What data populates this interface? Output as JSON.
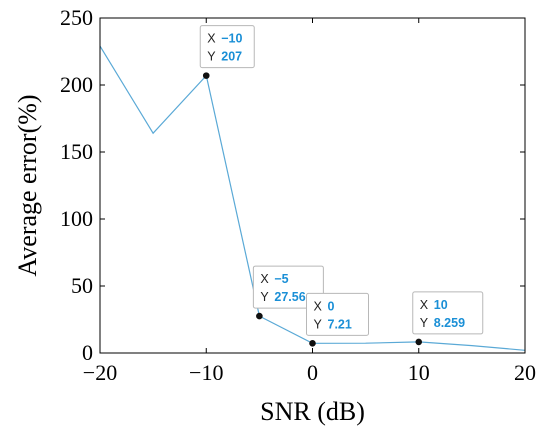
{
  "chart_data": {
    "type": "line",
    "title": "",
    "xlabel": "SNR (dB)",
    "ylabel": "Average error(%)",
    "xlim": [
      -20,
      20
    ],
    "ylim": [
      0,
      250
    ],
    "xticks": [
      -20,
      -10,
      0,
      10,
      20
    ],
    "xtick_labels": [
      "−20",
      "−10",
      "0",
      "10",
      "20"
    ],
    "yticks": [
      0,
      50,
      100,
      150,
      200,
      250
    ],
    "ytick_labels": [
      "0",
      "50",
      "100",
      "150",
      "200",
      "250"
    ],
    "grid": false,
    "line_color": "#5aa9d6",
    "series": [
      {
        "x": [
          -20,
          -15,
          -10,
          -5,
          0,
          5,
          10,
          15,
          20
        ],
        "y": [
          229,
          164,
          207,
          27.56,
          7.21,
          7.3,
          8.259,
          5.5,
          2
        ]
      }
    ],
    "datatips": [
      {
        "x": -10,
        "y": 207,
        "x_label": "X",
        "y_label": "Y",
        "x_text": "−10",
        "y_text": "207"
      },
      {
        "x": -5,
        "y": 27.56,
        "x_label": "X",
        "y_label": "Y",
        "x_text": "−5",
        "y_text": "27.56"
      },
      {
        "x": 0,
        "y": 7.21,
        "x_label": "X",
        "y_label": "Y",
        "x_text": "0",
        "y_text": "7.21"
      },
      {
        "x": 10,
        "y": 8.259,
        "x_label": "X",
        "y_label": "Y",
        "x_text": "10",
        "y_text": "8.259"
      }
    ]
  }
}
